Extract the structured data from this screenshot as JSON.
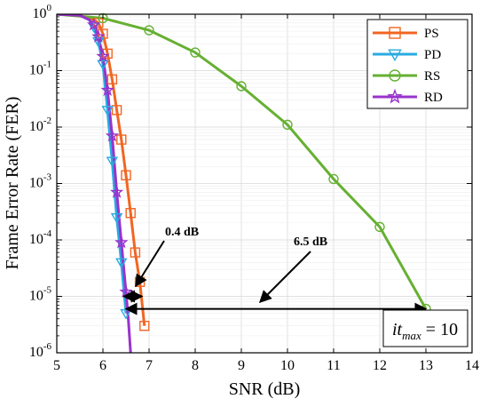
{
  "chart_data": {
    "type": "line",
    "xlabel": "SNR (dB)",
    "ylabel": "Frame Error Rate (FER)",
    "xlim": [
      5,
      14
    ],
    "ylim_exp": [
      -6,
      0
    ],
    "y_scale": "log",
    "grid": true,
    "legend_position": "top-right",
    "x_ticks": [
      "5",
      "6",
      "7",
      "8",
      "9",
      "10",
      "11",
      "12",
      "13",
      "14"
    ],
    "y_ticks": [
      {
        "base": "10",
        "exp": "0"
      },
      {
        "base": "10",
        "exp": "-1"
      },
      {
        "base": "10",
        "exp": "-2"
      },
      {
        "base": "10",
        "exp": "-3"
      },
      {
        "base": "10",
        "exp": "-4"
      },
      {
        "base": "10",
        "exp": "-5"
      },
      {
        "base": "10",
        "exp": "-6"
      }
    ],
    "series": [
      {
        "name": "PS",
        "color": "#f26522",
        "marker": "square",
        "x": [
          5.0,
          5.5,
          5.8,
          5.9,
          6.0,
          6.1,
          6.2,
          6.3,
          6.4,
          6.5,
          6.6,
          6.7,
          6.8,
          6.9
        ],
        "y": [
          1.0,
          0.95,
          0.8,
          0.7,
          0.45,
          0.2,
          0.07,
          0.02,
          0.006,
          0.0014,
          0.0003,
          6e-05,
          1.8e-05,
          3e-06
        ],
        "marker_x": [
          5.9,
          6.0,
          6.1,
          6.2,
          6.3,
          6.4,
          6.5,
          6.6,
          6.7,
          6.8,
          6.9
        ],
        "marker_y": [
          0.7,
          0.45,
          0.2,
          0.07,
          0.02,
          0.006,
          0.0014,
          0.0003,
          6e-05,
          1.8e-05,
          3e-06
        ]
      },
      {
        "name": "PD",
        "color": "#29abe2",
        "marker": "triangle-down",
        "x": [
          5.0,
          5.5,
          5.7,
          5.8,
          5.9,
          6.0,
          6.1,
          6.2,
          6.3,
          6.4,
          6.5
        ],
        "y": [
          1.0,
          0.95,
          0.8,
          0.6,
          0.33,
          0.13,
          0.02,
          0.0025,
          0.00025,
          4e-05,
          5e-06
        ],
        "marker_x": [
          5.8,
          5.9,
          6.0,
          6.1,
          6.2,
          6.3,
          6.4,
          6.5
        ],
        "marker_y": [
          0.6,
          0.33,
          0.13,
          0.02,
          0.0025,
          0.00025,
          4e-05,
          5e-06
        ]
      },
      {
        "name": "RS",
        "color": "#66b032",
        "marker": "circle",
        "x": [
          5.0,
          6.0,
          7.0,
          8.0,
          9.0,
          10.0,
          11.0,
          12.0,
          13.0
        ],
        "y": [
          1.0,
          0.85,
          0.52,
          0.21,
          0.053,
          0.011,
          0.0012,
          0.00017,
          6e-06
        ],
        "marker_x": [
          6.0,
          7.0,
          8.0,
          9.0,
          10.0,
          11.0,
          12.0,
          13.0
        ],
        "marker_y": [
          0.85,
          0.52,
          0.21,
          0.053,
          0.011,
          0.0012,
          0.00017,
          6e-06
        ]
      },
      {
        "name": "RD",
        "color": "#9933cc",
        "marker": "star",
        "x": [
          5.0,
          5.5,
          5.7,
          5.8,
          5.9,
          6.0,
          6.1,
          6.2,
          6.3,
          6.4,
          6.5,
          6.55,
          6.6
        ],
        "y": [
          1.0,
          0.95,
          0.8,
          0.65,
          0.4,
          0.18,
          0.045,
          0.007,
          0.0007,
          9e-05,
          1.2e-05,
          4e-06,
          1e-06
        ],
        "marker_x": [
          5.8,
          5.9,
          6.0,
          6.1,
          6.2,
          6.3,
          6.4,
          6.5
        ],
        "marker_y": [
          0.65,
          0.4,
          0.18,
          0.045,
          0.007,
          0.0007,
          9e-05,
          1.2e-05
        ]
      }
    ],
    "annotations": [
      {
        "text": "0.4 dB",
        "x_from": 6.45,
        "x_to": 6.85,
        "y": 1e-05
      },
      {
        "text": "6.5 dB",
        "x_from": 6.5,
        "x_to": 13.0,
        "y": 6e-06
      }
    ],
    "itmax": {
      "prefix": "it",
      "subscript": "max",
      "suffix": " = 10"
    }
  }
}
